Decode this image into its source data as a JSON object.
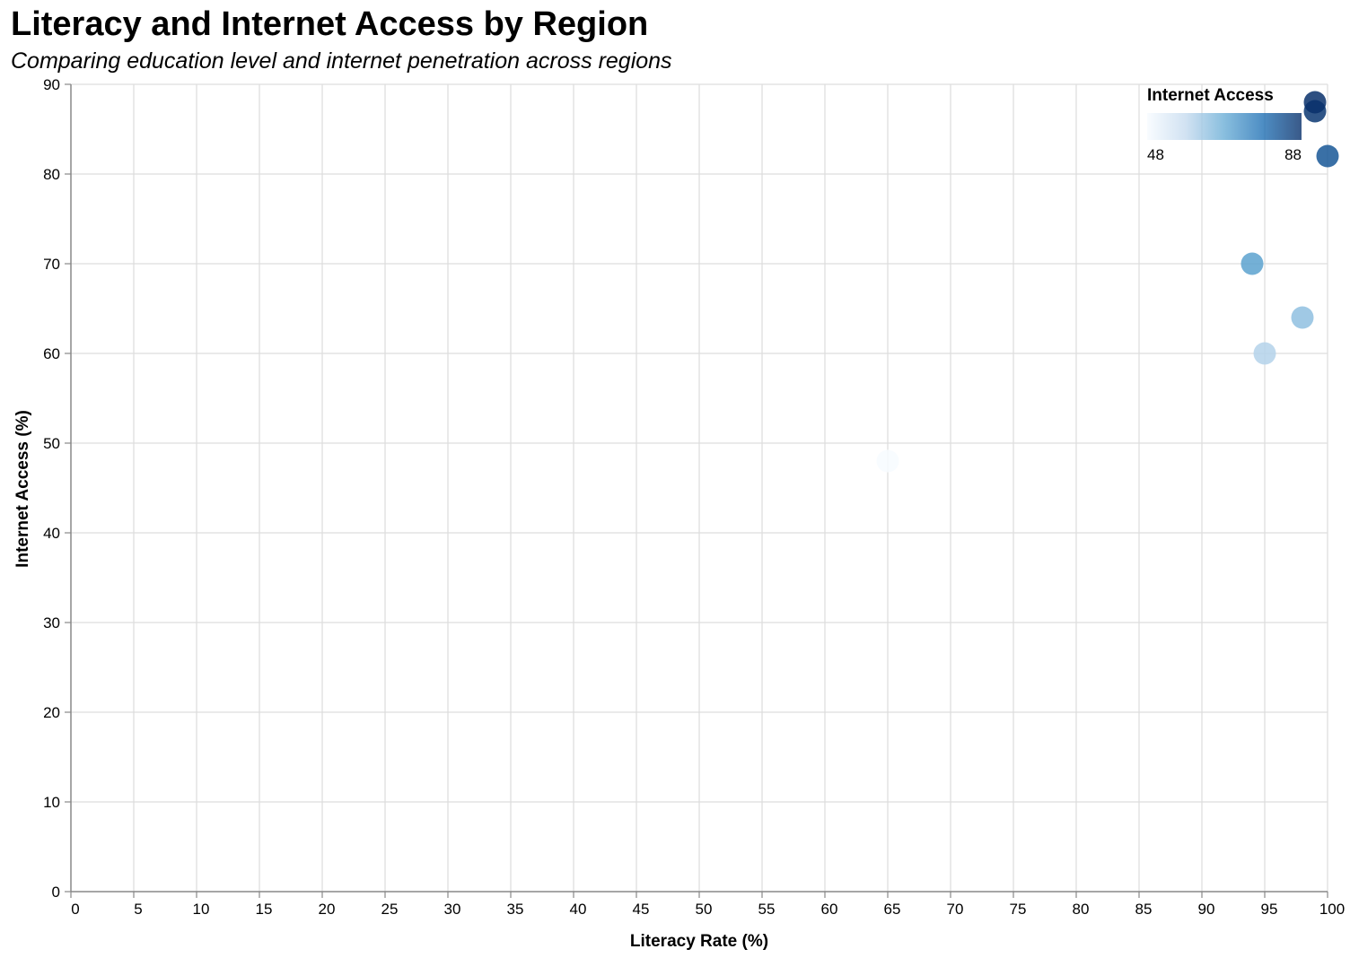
{
  "chart_data": {
    "type": "scatter",
    "title": "Literacy and Internet Access by Region",
    "subtitle": "Comparing education level and internet penetration across regions",
    "xlabel": "Literacy Rate (%)",
    "ylabel": "Internet Access (%)",
    "xlim": [
      0,
      100
    ],
    "ylim": [
      0,
      90
    ],
    "x_ticks": [
      0,
      5,
      10,
      15,
      20,
      25,
      30,
      35,
      40,
      45,
      50,
      55,
      60,
      65,
      70,
      75,
      80,
      85,
      90,
      95,
      100
    ],
    "y_ticks": [
      0,
      10,
      20,
      30,
      40,
      50,
      60,
      70,
      80,
      90
    ],
    "grid": true,
    "points": [
      {
        "x": 99,
        "y": 88
      },
      {
        "x": 99,
        "y": 87
      },
      {
        "x": 100,
        "y": 82
      },
      {
        "x": 94,
        "y": 70
      },
      {
        "x": 98,
        "y": 64
      },
      {
        "x": 95,
        "y": 60
      },
      {
        "x": 65,
        "y": 48
      }
    ],
    "color_encoding": "Internet Access",
    "legend": {
      "title": "Internet Access",
      "placement": "top-right",
      "min": 48,
      "max": 88,
      "min_label": "48",
      "max_label": "88"
    },
    "colors": {
      "scale_stops": [
        "#f7fbff",
        "#c6dbef",
        "#6baed6",
        "#2171b5",
        "#08306b"
      ],
      "grid": "#dddddd",
      "axis": "#888888"
    }
  }
}
